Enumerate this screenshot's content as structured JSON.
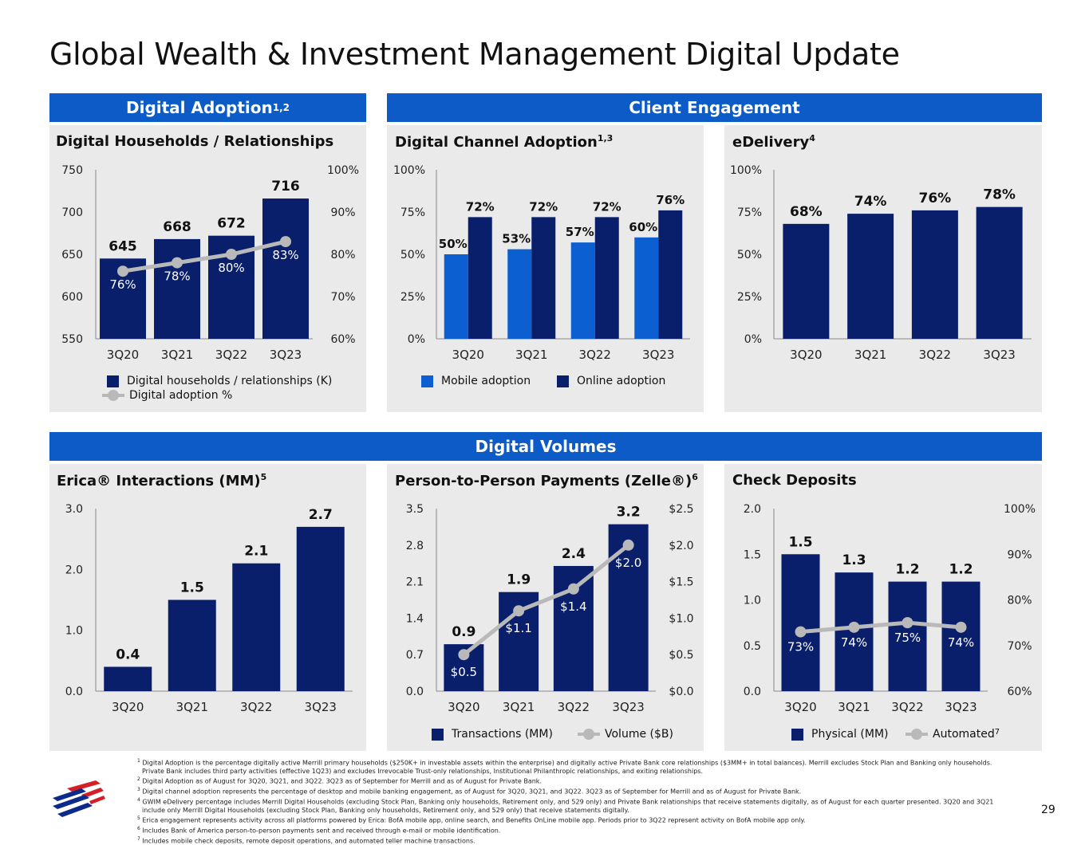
{
  "page": {
    "title": "Global Wealth & Investment Management Digital Update",
    "page_number": "29"
  },
  "sections": {
    "digital_adoption": "Digital Adoption",
    "digital_adoption_sup": "1,2",
    "client_engagement": "Client Engagement",
    "digital_volumes": "Digital Volumes"
  },
  "panels": {
    "households": {
      "title": "Digital Households / Relationships",
      "sup": "",
      "legend_bar": "Digital households / relationships (K)",
      "legend_line": "Digital adoption %"
    },
    "channel": {
      "title": "Digital Channel Adoption",
      "sup": "1,3",
      "legend_a": "Mobile adoption",
      "legend_b": "Online adoption"
    },
    "edelivery": {
      "title": "eDelivery",
      "sup": "4"
    },
    "erica": {
      "title": "Erica® Interactions (MM)",
      "sup": "5"
    },
    "p2p": {
      "title": "Person-to-Person Payments (Zelle®)",
      "sup": "6",
      "legend_bar": "Transactions (MM)",
      "legend_line": "Volume ($B)"
    },
    "checks": {
      "title": "Check Deposits",
      "sup": "",
      "legend_bar": "Physical (MM)",
      "legend_line": "Automated",
      "legend_line_sup": "7"
    }
  },
  "colors": {
    "navy": "#0a1f6b",
    "blue": "#0b5fd0",
    "band": "#0d5bc6",
    "panel": "#eaeaea",
    "line": "#b9b9b9"
  },
  "chart_data": [
    {
      "id": "households",
      "type": "bar",
      "categories": [
        "3Q20",
        "3Q21",
        "3Q22",
        "3Q23"
      ],
      "series": [
        {
          "name": "Digital households / relationships (K)",
          "values": [
            645,
            668,
            672,
            716
          ],
          "labels": [
            "645",
            "668",
            "672",
            "716"
          ]
        },
        {
          "name": "Digital adoption %",
          "values": [
            76,
            78,
            80,
            83
          ],
          "labels": [
            "76%",
            "78%",
            "80%",
            "83%"
          ],
          "axis": "right"
        }
      ],
      "ylim": [
        550,
        750
      ],
      "yticks": [
        "750",
        "700",
        "650",
        "600",
        "550"
      ],
      "y2lim": [
        60,
        100
      ],
      "y2ticks": [
        "100%",
        "90%",
        "80%",
        "70%",
        "60%"
      ]
    },
    {
      "id": "channel",
      "type": "bar",
      "categories": [
        "3Q20",
        "3Q21",
        "3Q22",
        "3Q23"
      ],
      "series": [
        {
          "name": "Mobile adoption",
          "values": [
            50,
            53,
            57,
            60
          ],
          "labels": [
            "50%",
            "53%",
            "57%",
            "60%"
          ]
        },
        {
          "name": "Online adoption",
          "values": [
            72,
            72,
            72,
            76
          ],
          "labels": [
            "72%",
            "72%",
            "72%",
            "76%"
          ]
        }
      ],
      "ylim": [
        0,
        100
      ],
      "yticks": [
        "100%",
        "75%",
        "50%",
        "25%",
        "0%"
      ]
    },
    {
      "id": "edelivery",
      "type": "bar",
      "categories": [
        "3Q20",
        "3Q21",
        "3Q22",
        "3Q23"
      ],
      "series": [
        {
          "name": "eDelivery",
          "values": [
            68,
            74,
            76,
            78
          ],
          "labels": [
            "68%",
            "74%",
            "76%",
            "78%"
          ]
        }
      ],
      "ylim": [
        0,
        100
      ],
      "yticks": [
        "100%",
        "75%",
        "50%",
        "25%",
        "0%"
      ]
    },
    {
      "id": "erica",
      "type": "bar",
      "categories": [
        "3Q20",
        "3Q21",
        "3Q22",
        "3Q23"
      ],
      "series": [
        {
          "name": "Erica Interactions (MM)",
          "values": [
            0.4,
            1.5,
            2.1,
            2.7
          ],
          "labels": [
            "0.4",
            "1.5",
            "2.1",
            "2.7"
          ]
        }
      ],
      "ylim": [
        0,
        3
      ],
      "yticks": [
        "3.0",
        "2.0",
        "1.0",
        "0.0"
      ]
    },
    {
      "id": "p2p",
      "type": "bar",
      "categories": [
        "3Q20",
        "3Q21",
        "3Q22",
        "3Q23"
      ],
      "series": [
        {
          "name": "Transactions (MM)",
          "values": [
            0.9,
            1.9,
            2.4,
            3.2
          ],
          "labels": [
            "0.9",
            "1.9",
            "2.4",
            "3.2"
          ]
        },
        {
          "name": "Volume ($B)",
          "values": [
            0.5,
            1.1,
            1.4,
            2.0
          ],
          "labels": [
            "$0.5",
            "$1.1",
            "$1.4",
            "$2.0"
          ],
          "axis": "right"
        }
      ],
      "ylim": [
        0,
        3.5
      ],
      "yticks": [
        "3.5",
        "2.8",
        "2.1",
        "1.4",
        "0.7",
        "0.0"
      ],
      "y2lim": [
        0,
        2.5
      ],
      "y2ticks": [
        "$2.5",
        "$2.0",
        "$1.5",
        "$1.0",
        "$0.5",
        "$0.0"
      ]
    },
    {
      "id": "checks",
      "type": "bar",
      "categories": [
        "3Q20",
        "3Q21",
        "3Q22",
        "3Q23"
      ],
      "series": [
        {
          "name": "Physical (MM)",
          "values": [
            1.5,
            1.3,
            1.2,
            1.2
          ],
          "labels": [
            "1.5",
            "1.3",
            "1.2",
            "1.2"
          ]
        },
        {
          "name": "Automated",
          "values": [
            73,
            74,
            75,
            74
          ],
          "labels": [
            "73%",
            "74%",
            "75%",
            "74%"
          ],
          "axis": "right"
        }
      ],
      "ylim": [
        0,
        2
      ],
      "yticks": [
        "2.0",
        "1.5",
        "1.0",
        "0.5",
        "0.0"
      ],
      "y2lim": [
        60,
        100
      ],
      "y2ticks": [
        "100%",
        "90%",
        "80%",
        "70%",
        "60%"
      ]
    }
  ],
  "footnotes": [
    {
      "n": "1",
      "text": "Digital Adoption is the percentage digitally active Merrill primary households ($250K+ in investable assets within the enterprise) and digitally active Private Bank core relationships ($3MM+ in total balances). Merrill excludes Stock Plan and Banking only households."
    },
    {
      "n": "",
      "text": "Private Bank includes third party activities (effective 1Q23) and excludes Irrevocable Trust-only relationships, Institutional Philanthropic relationships, and exiting relationships."
    },
    {
      "n": "2",
      "text": "Digital Adoption as of August for 3Q20, 3Q21, and 3Q22. 3Q23 as of September for Merrill and as of August for Private Bank."
    },
    {
      "n": "3",
      "text": "Digital channel adoption represents the percentage of desktop and mobile banking engagement, as of August for 3Q20, 3Q21, and 3Q22. 3Q23 as of September for Merrill and as of August for Private Bank."
    },
    {
      "n": "4",
      "text": "GWIM eDelivery percentage includes Merrill Digital Households (excluding Stock Plan, Banking only households, Retirement only, and 529 only) and Private Bank relationships that receive statements digitally, as of August for each quarter presented. 3Q20 and 3Q21"
    },
    {
      "n": "",
      "text": "include only Merrill Digital Households (excluding Stock Plan, Banking only households, Retirement only, and 529 only) that receive statements digitally."
    },
    {
      "n": "5",
      "text": "Erica engagement represents activity across all platforms powered by Erica: BofA mobile app, online search, and Benefits OnLine mobile app. Periods prior to 3Q22 represent activity on BofA mobile app only."
    },
    {
      "n": "6",
      "text": "Includes Bank of America person-to-person payments sent and received through e-mail or mobile identification."
    },
    {
      "n": "7",
      "text": "Includes mobile check deposits, remote deposit operations, and automated teller machine transactions."
    }
  ]
}
